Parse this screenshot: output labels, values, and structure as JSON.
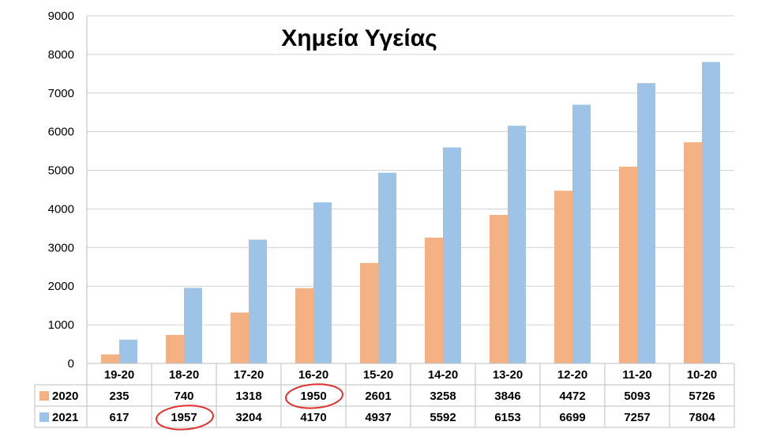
{
  "chart_data": {
    "type": "bar",
    "title": "Χημεία Υγείας",
    "categories": [
      "19-20",
      "18-20",
      "17-20",
      "16-20",
      "15-20",
      "14-20",
      "13-20",
      "12-20",
      "11-20",
      "10-20"
    ],
    "series": [
      {
        "name": "2020",
        "color": "#f4b183",
        "values": [
          235,
          740,
          1318,
          1950,
          2601,
          3258,
          3846,
          4472,
          5093,
          5726
        ]
      },
      {
        "name": "2021",
        "color": "#9dc3e6",
        "values": [
          617,
          1957,
          3204,
          4170,
          4937,
          5592,
          6153,
          6699,
          7257,
          7804
        ]
      }
    ],
    "ylim": [
      0,
      9000
    ],
    "yticks": [
      0,
      1000,
      2000,
      3000,
      4000,
      5000,
      6000,
      7000,
      8000,
      9000
    ],
    "grid": true,
    "legend": "data-table",
    "data_table": true,
    "annotations": [
      {
        "type": "circle",
        "series": "2020",
        "category": "16-20",
        "color": "#e03030"
      },
      {
        "type": "circle",
        "series": "2021",
        "category": "18-20",
        "color": "#e03030"
      }
    ]
  }
}
